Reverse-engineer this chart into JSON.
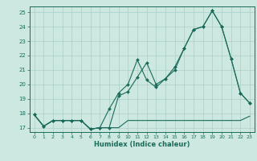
{
  "title": "",
  "xlabel": "Humidex (Indice chaleur)",
  "bg_color": "#cce8e0",
  "line_color": "#1a6b5a",
  "grid_color": "#aacfc8",
  "xlim": [
    -0.5,
    23.5
  ],
  "ylim": [
    16.7,
    25.4
  ],
  "xticks": [
    0,
    1,
    2,
    3,
    4,
    5,
    6,
    7,
    8,
    9,
    10,
    11,
    12,
    13,
    14,
    15,
    16,
    17,
    18,
    19,
    20,
    21,
    22,
    23
  ],
  "yticks": [
    17,
    18,
    19,
    20,
    21,
    22,
    23,
    24,
    25
  ],
  "series1_x": [
    0,
    1,
    2,
    3,
    4,
    5,
    6,
    7,
    8,
    9,
    10,
    11,
    12,
    13,
    14,
    15,
    16,
    17,
    18,
    19,
    20,
    21,
    22,
    23
  ],
  "series1_y": [
    17.9,
    17.1,
    17.5,
    17.5,
    17.5,
    17.5,
    16.9,
    17.0,
    17.0,
    17.0,
    17.5,
    17.5,
    17.5,
    17.5,
    17.5,
    17.5,
    17.5,
    17.5,
    17.5,
    17.5,
    17.5,
    17.5,
    17.5,
    17.8
  ],
  "series2_x": [
    0,
    1,
    2,
    3,
    4,
    5,
    6,
    7,
    8,
    9,
    10,
    11,
    12,
    13,
    14,
    15,
    16,
    17,
    18,
    19,
    20,
    21,
    22,
    23
  ],
  "series2_y": [
    17.9,
    17.1,
    17.5,
    17.5,
    17.5,
    17.5,
    16.9,
    17.0,
    18.3,
    19.4,
    20.0,
    21.7,
    20.3,
    19.8,
    20.4,
    21.2,
    22.5,
    23.8,
    24.0,
    25.1,
    24.0,
    21.8,
    19.4,
    18.7
  ],
  "series3_x": [
    0,
    1,
    2,
    3,
    4,
    5,
    6,
    7,
    8,
    9,
    10,
    11,
    12,
    13,
    14,
    15,
    16,
    17,
    18,
    19,
    20,
    21,
    22,
    23
  ],
  "series3_y": [
    17.9,
    17.1,
    17.5,
    17.5,
    17.5,
    17.5,
    16.9,
    17.0,
    17.0,
    19.2,
    19.5,
    20.5,
    21.5,
    20.0,
    20.4,
    21.0,
    22.5,
    23.8,
    24.0,
    25.1,
    24.0,
    21.8,
    19.4,
    18.7
  ]
}
